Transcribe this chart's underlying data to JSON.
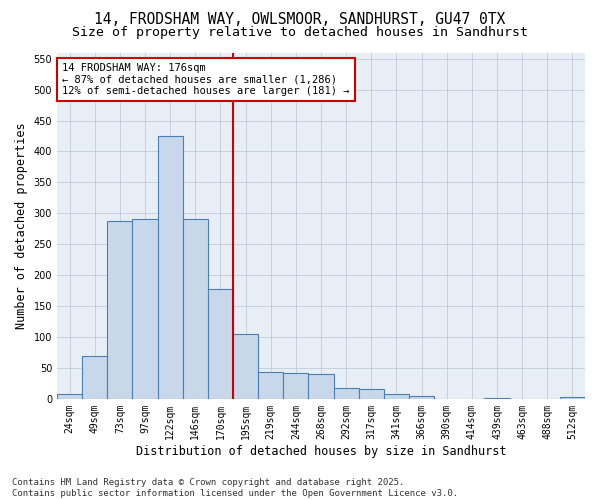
{
  "title_line1": "14, FRODSHAM WAY, OWLSMOOR, SANDHURST, GU47 0TX",
  "title_line2": "Size of property relative to detached houses in Sandhurst",
  "xlabel": "Distribution of detached houses by size in Sandhurst",
  "ylabel": "Number of detached properties",
  "bin_labels": [
    "24sqm",
    "49sqm",
    "73sqm",
    "97sqm",
    "122sqm",
    "146sqm",
    "170sqm",
    "195sqm",
    "219sqm",
    "244sqm",
    "268sqm",
    "292sqm",
    "317sqm",
    "341sqm",
    "366sqm",
    "390sqm",
    "414sqm",
    "439sqm",
    "463sqm",
    "488sqm",
    "512sqm"
  ],
  "bar_values": [
    8,
    70,
    288,
    290,
    425,
    290,
    178,
    105,
    44,
    42,
    40,
    17,
    16,
    8,
    5,
    0,
    0,
    2,
    0,
    0,
    3
  ],
  "bar_color": "#c8d8ea",
  "bar_edge_color": "#4a7fb5",
  "vline_color": "#cc0000",
  "annotation_line1": "14 FRODSHAM WAY: 176sqm",
  "annotation_line2": "← 87% of detached houses are smaller (1,286)",
  "annotation_line3": "12% of semi-detached houses are larger (181) →",
  "annotation_box_color": "#ffffff",
  "annotation_box_edge": "#cc0000",
  "ylim": [
    0,
    560
  ],
  "yticks": [
    0,
    50,
    100,
    150,
    200,
    250,
    300,
    350,
    400,
    450,
    500,
    550
  ],
  "grid_color": "#c0ccd8",
  "plot_bg_color": "#e8eef5",
  "figure_bg_color": "#ffffff",
  "footer_line1": "Contains HM Land Registry data © Crown copyright and database right 2025.",
  "footer_line2": "Contains public sector information licensed under the Open Government Licence v3.0.",
  "title_fontsize": 10.5,
  "subtitle_fontsize": 9.5,
  "axis_label_fontsize": 8.5,
  "tick_fontsize": 7,
  "annotation_fontsize": 7.5,
  "footer_fontsize": 6.5
}
